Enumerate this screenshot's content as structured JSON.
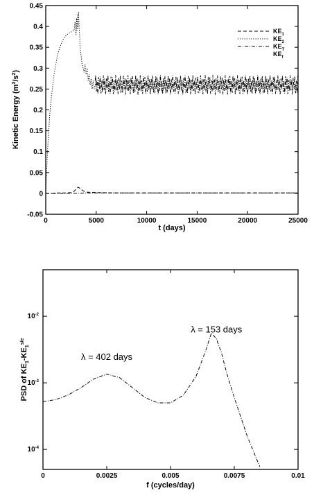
{
  "chart_data": [
    {
      "type": "line",
      "xlabel": "t (days)",
      "ylabel": "Kinetic Energy (m³/s²)",
      "ylabel_parts": [
        "Kinetic Energy (m",
        "3",
        "/s",
        "2",
        ")"
      ],
      "xlim": [
        0,
        25000
      ],
      "ylim": [
        -0.05,
        0.45
      ],
      "x_ticks": [
        0,
        5000,
        10000,
        15000,
        20000,
        25000
      ],
      "x_tick_labels": [
        "0",
        "5000",
        "10000",
        "15000",
        "20000",
        "25000"
      ],
      "y_ticks": [
        -0.05,
        0,
        0.05,
        0.1,
        0.15,
        0.2,
        0.25,
        0.3,
        0.35,
        0.4,
        0.45
      ],
      "y_tick_labels": [
        "-0.05",
        "0",
        "0.05",
        "0.1",
        "0.15",
        "0.2",
        "0.25",
        "0.3",
        "0.35",
        "0.4",
        "0.45"
      ],
      "legend_placement": "top-right",
      "legend": [
        {
          "base": "KE",
          "sub": "1",
          "style": "dash"
        },
        {
          "base": "KE",
          "sub": "2",
          "style": "dot"
        },
        {
          "base": "KE",
          "sub": "T",
          "style": "dashdot"
        },
        {
          "base": "KE",
          "sub": "f",
          "style": "none"
        }
      ],
      "series": [
        {
          "style": "dot",
          "x": [
            0,
            100,
            200,
            300,
            400,
            600,
            800,
            1000,
            1200,
            1400,
            1600,
            1800,
            2000,
            2200,
            2400,
            2600,
            2800,
            2900,
            3000,
            3050,
            3100,
            3150,
            3200,
            3250,
            3300,
            3350,
            3400,
            3500,
            3600,
            3700,
            3800,
            3900,
            4000,
            4100,
            4200,
            4300,
            4400,
            4500,
            4600,
            4700,
            4800,
            5000,
            5300
          ],
          "y": [
            0,
            0.06,
            0.11,
            0.15,
            0.19,
            0.24,
            0.28,
            0.31,
            0.335,
            0.35,
            0.363,
            0.372,
            0.378,
            0.382,
            0.385,
            0.388,
            0.39,
            0.41,
            0.38,
            0.42,
            0.39,
            0.43,
            0.395,
            0.435,
            0.41,
            0.38,
            0.35,
            0.33,
            0.31,
            0.3,
            0.29,
            0.31,
            0.285,
            0.3,
            0.27,
            0.285,
            0.26,
            0.275,
            0.25,
            0.27,
            0.25,
            0.27,
            0.26
          ]
        },
        {
          "style": "dash",
          "x": [
            0,
            500,
            1000,
            1500,
            2000,
            2500,
            2800,
            3000,
            3200,
            3400,
            3600,
            3800,
            4000,
            5000,
            7500,
            10000,
            12500,
            15000,
            17500,
            20000,
            22500,
            25000
          ],
          "y": [
            0,
            0,
            0.001,
            0.001,
            0.001,
            0.002,
            0.005,
            0.01,
            0.015,
            0.012,
            0.008,
            0.005,
            0.003,
            0.002,
            0.001,
            0.001,
            0.001,
            0.001,
            0.001,
            0.001,
            0.001,
            0.001
          ]
        },
        {
          "style": "dashdot",
          "x": [
            0,
            2000,
            4000,
            6000,
            8000,
            10000,
            12000,
            14000,
            16000,
            18000,
            20000,
            22000,
            24000,
            25000
          ],
          "y": [
            0,
            0,
            0.001,
            0.001,
            0.001,
            0.001,
            0.001,
            0.001,
            0.001,
            0.001,
            0.001,
            0.001,
            0.001,
            0.001
          ]
        }
      ],
      "oscillation": {
        "style": "dashdot",
        "x_start": 4900,
        "x_end": 25000,
        "period_days": 402,
        "short_period_days": 153,
        "mean": 0.26,
        "amplitude": 0.017
      }
    },
    {
      "type": "line",
      "xlabel": "f (cycles/day)",
      "ylabel_parts": [
        "PSD of KE",
        "1",
        "-KE",
        "1",
        "s/e"
      ],
      "y_scale": "log",
      "xlim": [
        0,
        0.01
      ],
      "ylim": [
        5e-05,
        0.05
      ],
      "x_ticks": [
        0,
        0.0025,
        0.005,
        0.0075,
        0.01
      ],
      "x_tick_labels": [
        "0",
        "0.0025",
        "0.005",
        "0.0075",
        "0.01"
      ],
      "y_ticks": [
        0.0001,
        0.001,
        0.01
      ],
      "y_tick_labels": [
        {
          "base": "10",
          "exp": "-4"
        },
        {
          "base": "10",
          "exp": "-3"
        },
        {
          "base": "10",
          "exp": "-2"
        }
      ],
      "series": [
        {
          "style": "dashdot",
          "x": [
            0,
            0.0005,
            0.001,
            0.0015,
            0.002,
            0.0025,
            0.003,
            0.0035,
            0.004,
            0.0045,
            0.005,
            0.0055,
            0.006,
            0.0062,
            0.0064,
            0.0066,
            0.0068,
            0.007,
            0.0072,
            0.0075,
            0.008,
            0.0085
          ],
          "y": [
            0.00052,
            0.00056,
            0.00066,
            0.00085,
            0.00115,
            0.00135,
            0.0012,
            0.00085,
            0.0006,
            0.0005,
            0.0005,
            0.00065,
            0.00125,
            0.002,
            0.0032,
            0.0056,
            0.0046,
            0.0028,
            0.0014,
            0.0006,
            0.00016,
            5.5e-05
          ]
        }
      ],
      "annotations": [
        {
          "text": "λ = 402 days",
          "x": 0.0025,
          "y": 0.0022
        },
        {
          "text": "λ = 153 days",
          "x": 0.0068,
          "y": 0.0057
        }
      ]
    }
  ]
}
